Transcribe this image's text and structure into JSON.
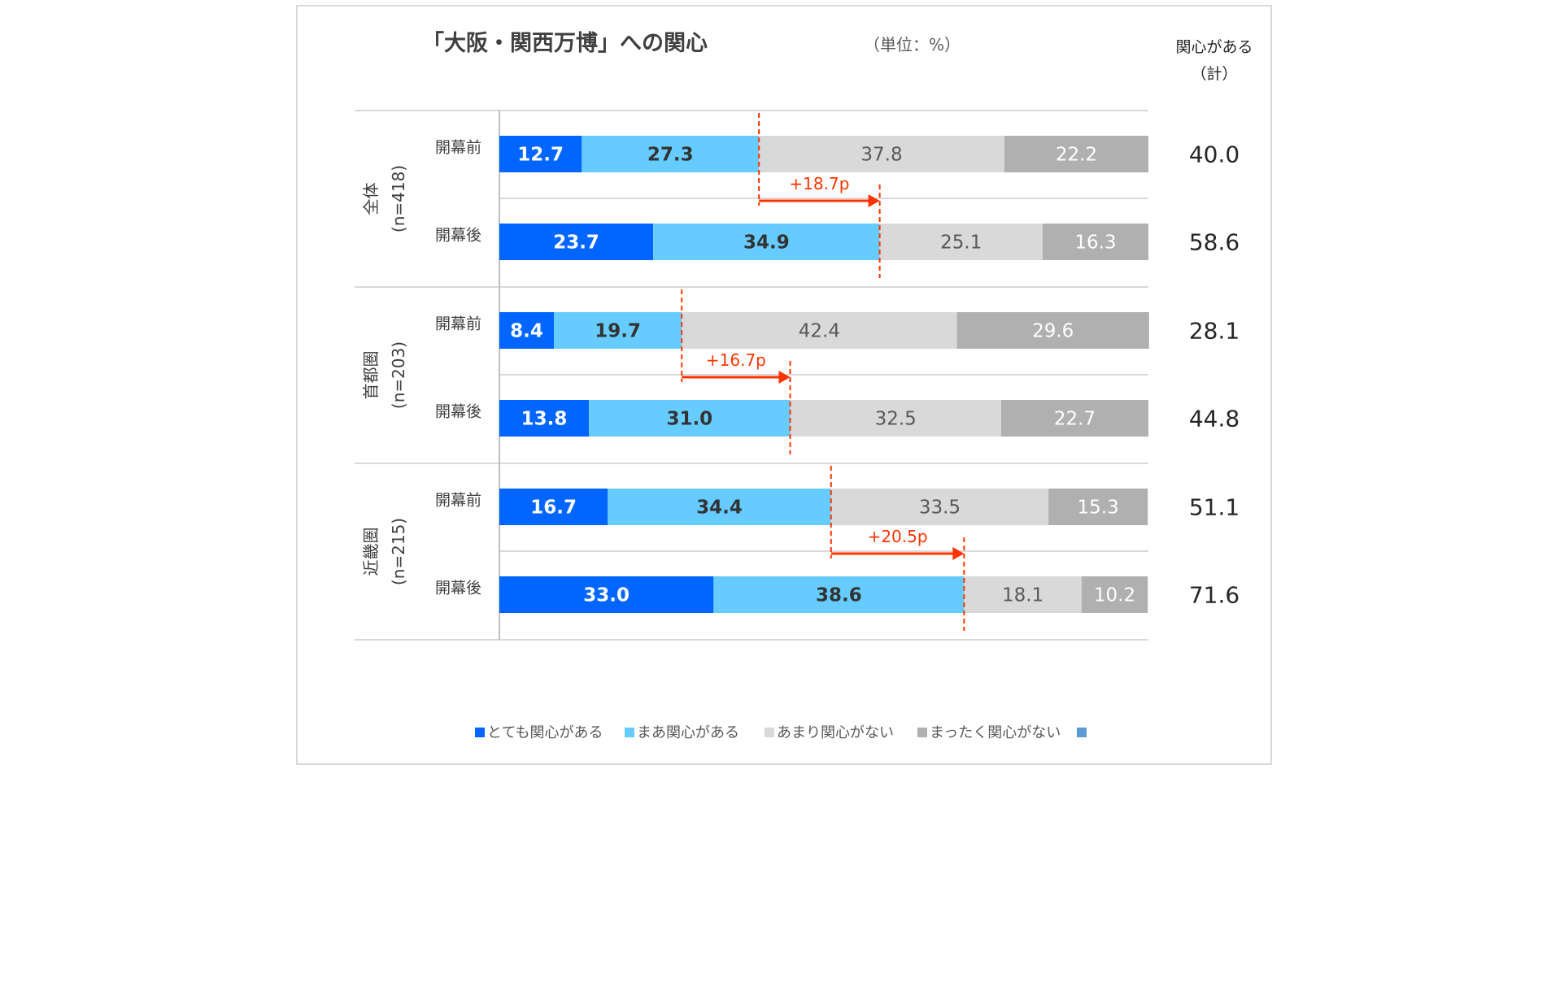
{
  "chart_data": {
    "type": "bar",
    "stacked": true,
    "orientation": "horizontal",
    "title": "「大阪・関西万博」への関心",
    "unit_note": "（単位：%）",
    "total_header": [
      "関心がある",
      "（計）"
    ],
    "groups": [
      {
        "label": "全体",
        "n": "(n=418)",
        "rows": [
          {
            "label": "開幕前",
            "values": [
              12.7,
              27.3,
              37.8,
              22.2
            ],
            "labels": [
              "12.7",
              "27.3",
              "37.8",
              "22.2"
            ],
            "total": "40.0"
          },
          {
            "label": "開幕後",
            "values": [
              23.7,
              34.9,
              25.1,
              16.3
            ],
            "labels": [
              "23.7",
              "34.9",
              "25.1",
              "16.3"
            ],
            "total": "58.6"
          }
        ],
        "change": "+18.7p"
      },
      {
        "label": "首都圏",
        "n": "(n=203)",
        "rows": [
          {
            "label": "開幕前",
            "values": [
              8.4,
              19.7,
              42.4,
              29.6
            ],
            "labels": [
              "8.4",
              "19.7",
              "42.4",
              "29.6"
            ],
            "total": "28.1"
          },
          {
            "label": "開幕後",
            "values": [
              13.8,
              31.0,
              32.5,
              22.7
            ],
            "labels": [
              "13.8",
              "31.0",
              "32.5",
              "22.7"
            ],
            "total": "44.8"
          }
        ],
        "change": "+16.7p"
      },
      {
        "label": "近畿圏",
        "n": "(n=215)",
        "rows": [
          {
            "label": "開幕前",
            "values": [
              16.7,
              34.4,
              33.5,
              15.3
            ],
            "labels": [
              "16.7",
              "34.4",
              "33.5",
              "15.3"
            ],
            "total": "51.1"
          },
          {
            "label": "開幕後",
            "values": [
              33.0,
              38.6,
              18.1,
              10.2
            ],
            "labels": [
              "33.0",
              "38.6",
              "18.1",
              "10.2"
            ],
            "total": "71.6"
          }
        ],
        "change": "+20.5p"
      }
    ],
    "series": [
      {
        "name": "とても関心がある",
        "color": "#0066ff",
        "label_color": "#ffffff",
        "bold": true
      },
      {
        "name": "まあ関心がある",
        "color": "#66ccff",
        "label_color": "#333333",
        "bold": true
      },
      {
        "name": "あまり関心がない",
        "color": "#d9d9d9",
        "label_color": "#595959",
        "bold": false
      },
      {
        "name": "まったく関心がない",
        "color": "#b0b0b0",
        "label_color": "#ffffff",
        "bold": false
      },
      {
        "name": "",
        "color": "#5b9bd5"
      }
    ],
    "xlim": [
      0,
      100
    ],
    "annotation_color": "#ff3300",
    "legend_position": "bottom"
  }
}
